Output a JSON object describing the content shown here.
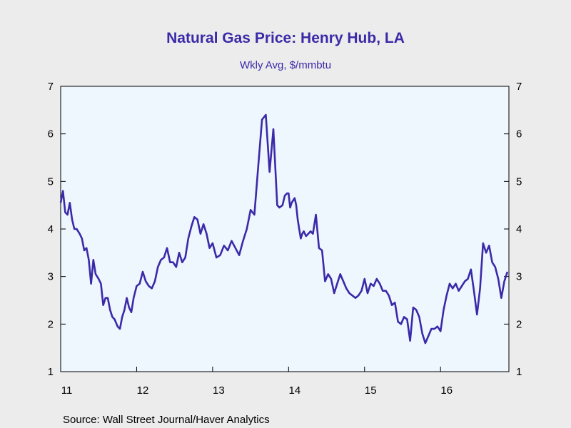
{
  "chart_data": {
    "type": "line",
    "title": "Natural Gas Price: Henry Hub, LA",
    "subtitle": "Wkly Avg, $/mmbtu",
    "source": "Source:  Wall Street Journal/Haver Analytics",
    "xlim": [
      2011.0,
      2016.9
    ],
    "ylim": [
      1,
      7
    ],
    "y_ticks": [
      "1",
      "2",
      "3",
      "4",
      "5",
      "6",
      "7"
    ],
    "x_tick_labels": [
      {
        "label": "11",
        "year": 2011
      },
      {
        "label": "12",
        "year": 2012
      },
      {
        "label": "13",
        "year": 2013
      },
      {
        "label": "14",
        "year": 2014
      },
      {
        "label": "15",
        "year": 2015
      },
      {
        "label": "16",
        "year": 2016
      }
    ],
    "grid": false,
    "colors": {
      "line": "#3b2aa8",
      "plot_bg": "#eef6fe",
      "page_bg": "#ececec",
      "title": "#3b2aa8"
    },
    "series": [
      {
        "x": [
          2011.0,
          2011.03,
          2011.06,
          2011.09,
          2011.12,
          2011.15,
          2011.18,
          2011.21,
          2011.25,
          2011.28,
          2011.31,
          2011.34,
          2011.37,
          2011.4,
          2011.43,
          2011.46,
          2011.5,
          2011.53,
          2011.56,
          2011.59,
          2011.62,
          2011.65,
          2011.68,
          2011.71,
          2011.75,
          2011.78,
          2011.81,
          2011.84,
          2011.87,
          2011.9,
          2011.93,
          2011.96,
          2012.0,
          2012.04,
          2012.08,
          2012.12,
          2012.16,
          2012.2,
          2012.24,
          2012.28,
          2012.32,
          2012.36,
          2012.4,
          2012.44,
          2012.48,
          2012.52,
          2012.56,
          2012.6,
          2012.64,
          2012.68,
          2012.72,
          2012.76,
          2012.8,
          2012.84,
          2012.88,
          2012.92,
          2012.96,
          2013.0,
          2013.05,
          2013.1,
          2013.15,
          2013.2,
          2013.25,
          2013.3,
          2013.35,
          2013.4,
          2013.45,
          2013.5,
          2013.55,
          2013.6,
          2013.65,
          2013.7,
          2013.75,
          2013.8,
          2013.85,
          2013.88,
          2013.92,
          2013.95,
          2013.98,
          2014.0,
          2014.02,
          2014.04,
          2014.06,
          2014.08,
          2014.1,
          2014.12,
          2014.14,
          2014.16,
          2014.18,
          2014.2,
          2014.23,
          2014.26,
          2014.29,
          2014.32,
          2014.36,
          2014.4,
          2014.44,
          2014.48,
          2014.52,
          2014.56,
          2014.6,
          2014.64,
          2014.68,
          2014.72,
          2014.76,
          2014.8,
          2014.84,
          2014.88,
          2014.92,
          2014.96,
          2015.0,
          2015.04,
          2015.08,
          2015.12,
          2015.16,
          2015.2,
          2015.24,
          2015.28,
          2015.32,
          2015.36,
          2015.4,
          2015.44,
          2015.48,
          2015.52,
          2015.56,
          2015.6,
          2015.64,
          2015.68,
          2015.72,
          2015.76,
          2015.8,
          2015.84,
          2015.88,
          2015.92,
          2015.96,
          2016.0,
          2016.04,
          2016.08,
          2016.12,
          2016.16,
          2016.2,
          2016.24,
          2016.28,
          2016.32,
          2016.36,
          2016.4,
          2016.44,
          2016.48,
          2016.52,
          2016.56,
          2016.6,
          2016.64,
          2016.68,
          2016.72,
          2016.76,
          2016.8,
          2016.84,
          2016.88
        ],
        "y": [
          4.55,
          4.8,
          4.35,
          4.3,
          4.55,
          4.2,
          4.0,
          4.0,
          3.9,
          3.8,
          3.55,
          3.6,
          3.35,
          2.85,
          3.35,
          3.05,
          2.95,
          2.85,
          2.4,
          2.55,
          2.55,
          2.3,
          2.15,
          2.1,
          1.95,
          1.9,
          2.15,
          2.3,
          2.55,
          2.35,
          2.25,
          2.55,
          2.8,
          2.85,
          3.1,
          2.9,
          2.8,
          2.75,
          2.9,
          3.2,
          3.35,
          3.4,
          3.6,
          3.3,
          3.3,
          3.2,
          3.5,
          3.3,
          3.4,
          3.8,
          4.05,
          4.25,
          4.2,
          3.9,
          4.1,
          3.9,
          3.6,
          3.7,
          3.4,
          3.45,
          3.65,
          3.55,
          3.75,
          3.6,
          3.45,
          3.75,
          4.0,
          4.4,
          4.3,
          5.3,
          6.3,
          6.4,
          5.2,
          6.1,
          4.5,
          4.45,
          4.5,
          4.7,
          4.75,
          4.75,
          4.45,
          4.55,
          4.6,
          4.65,
          4.5,
          4.2,
          4.0,
          3.8,
          3.9,
          3.95,
          3.85,
          3.9,
          3.95,
          3.9,
          4.3,
          3.6,
          3.55,
          2.9,
          3.05,
          2.95,
          2.65,
          2.85,
          3.05,
          2.9,
          2.75,
          2.65,
          2.6,
          2.55,
          2.6,
          2.7,
          2.95,
          2.65,
          2.85,
          2.8,
          2.95,
          2.85,
          2.7,
          2.7,
          2.6,
          2.4,
          2.45,
          2.05,
          2.0,
          2.15,
          2.1,
          1.65,
          2.35,
          2.3,
          2.15,
          1.8,
          1.6,
          1.75,
          1.9,
          1.9,
          1.95,
          1.85,
          2.3,
          2.6,
          2.85,
          2.75,
          2.85,
          2.7,
          2.8,
          2.9,
          2.95,
          3.15,
          2.7,
          2.2,
          2.75,
          3.7,
          3.5,
          3.65,
          3.3,
          3.2,
          2.95,
          2.55,
          2.9,
          3.1
        ]
      }
    ]
  }
}
